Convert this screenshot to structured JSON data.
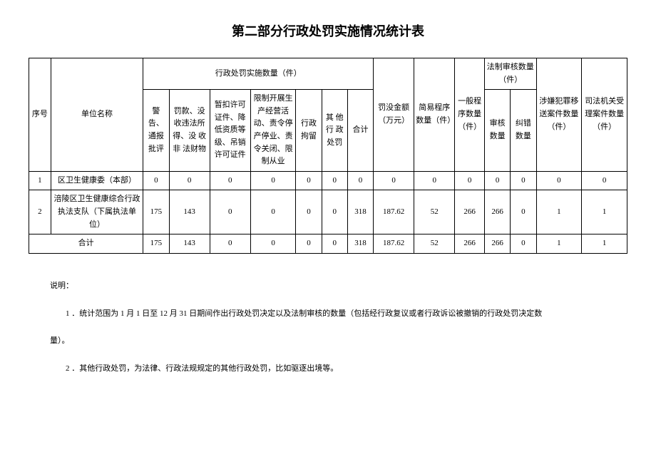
{
  "title": "第二部分行政处罚实施情况统计表",
  "headers": {
    "seq": "序号",
    "unit": "单位名称",
    "penalty_group": "行政处罚实施数量（件）",
    "warning": "警告、通报批评",
    "fine": "罚款、没收违法所得、没 收 非 法财物",
    "suspend": "暂扣许可证件、降低资质等级、吊销许可证件",
    "restrict": "限制开展生产经营活动、责令停产停业、责令关闭、限制从业",
    "detain": "行政拘留",
    "other": "其 他行 政处罚",
    "total": "合计",
    "amount": "罚没金额（万元）",
    "simple": "简易程序数量（件）",
    "general": "一般程序数量（件）",
    "legal_group": "法制审核数量（件）",
    "review": "审核数量",
    "correct": "纠错数量",
    "transfer": "涉嫌犯罪移送案件数量（件）",
    "judicial": "司法机关受理案件数量（件）"
  },
  "rows": [
    {
      "seq": "1",
      "unit": "区卫生健康委（本部）",
      "warning": "0",
      "fine": "0",
      "suspend": "0",
      "restrict": "0",
      "detain": "0",
      "other": "0",
      "total": "0",
      "amount": "0",
      "simple": "0",
      "general": "0",
      "review": "0",
      "correct": "0",
      "transfer": "0",
      "judicial": "0"
    },
    {
      "seq": "2",
      "unit": "涪陵区卫生健康综合行政执法支队（下属执法单位）",
      "warning": "175",
      "fine": "143",
      "suspend": "0",
      "restrict": "0",
      "detain": "0",
      "other": "0",
      "total": "318",
      "amount": "187.62",
      "simple": "52",
      "general": "266",
      "review": "266",
      "correct": "0",
      "transfer": "1",
      "judicial": "1"
    }
  ],
  "totals": {
    "label": "合计",
    "warning": "175",
    "fine": "143",
    "suspend": "0",
    "restrict": "0",
    "detain": "0",
    "other": "0",
    "total": "318",
    "amount": "187.62",
    "simple": "52",
    "general": "266",
    "review": "266",
    "correct": "0",
    "transfer": "1",
    "judicial": "1"
  },
  "notes": {
    "label": "说明：",
    "n1": "1 ．统计范围为 1 月 1 日至 12 月 31 日期间作出行政处罚决定以及法制审核的数量（包括经行政复议或者行政诉讼被撤销的行政处罚决定数",
    "n1b": "量）。",
    "n2": "2 ．其他行政处罚，为法律、行政法规规定的其他行政处罚，比如驱逐出境等。"
  }
}
